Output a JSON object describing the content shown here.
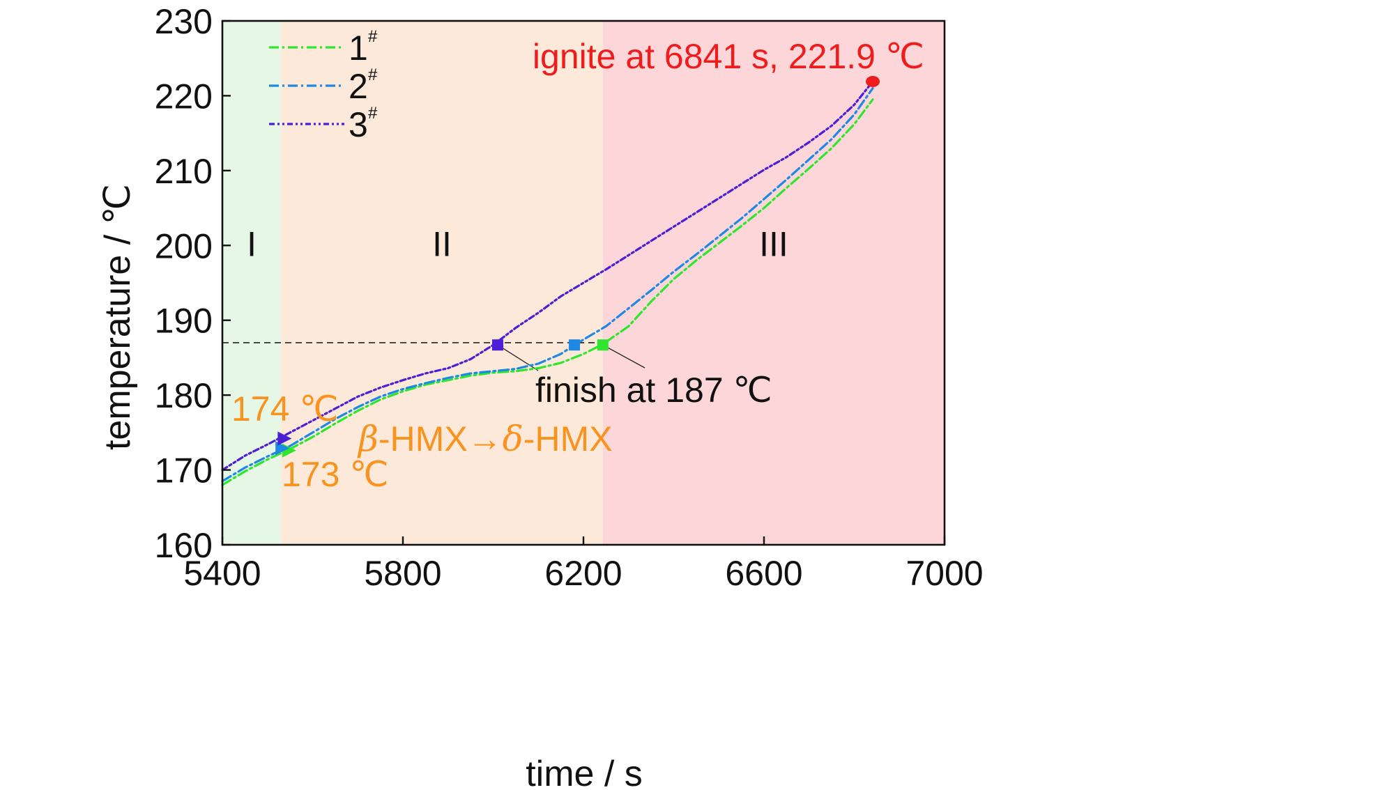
{
  "chart_data": {
    "type": "line",
    "xlabel": "time / s",
    "ylabel": "temperature / ℃",
    "xlim": [
      5400,
      7000
    ],
    "ylim": [
      160,
      230
    ],
    "xticks": [
      "5400",
      "5800",
      "6200",
      "6600",
      "7000"
    ],
    "yticks": [
      "160",
      "170",
      "180",
      "190",
      "200",
      "210",
      "220",
      "230"
    ],
    "grid": false,
    "legend_position": "top-left",
    "regions": [
      {
        "label": "I",
        "x_from": 5400,
        "x_to": 5530,
        "color": "#e6f7e6"
      },
      {
        "label": "II",
        "x_from": 5530,
        "x_to": 6243,
        "color": "#fde9d9"
      },
      {
        "label": "III",
        "x_from": 6243,
        "x_to": 7000,
        "color": "#fcd6d8"
      }
    ],
    "series": [
      {
        "name": "1",
        "superscript": "#",
        "color": "#2ee62e",
        "dash": "14 5 3 5",
        "points": [
          [
            5400,
            168.0
          ],
          [
            5450,
            169.8
          ],
          [
            5500,
            171.4
          ],
          [
            5550,
            172.8
          ],
          [
            5600,
            174.4
          ],
          [
            5650,
            176.2
          ],
          [
            5700,
            177.9
          ],
          [
            5750,
            179.4
          ],
          [
            5800,
            180.5
          ],
          [
            5850,
            181.4
          ],
          [
            5900,
            182.0
          ],
          [
            5950,
            182.6
          ],
          [
            6000,
            183.0
          ],
          [
            6050,
            183.2
          ],
          [
            6100,
            183.6
          ],
          [
            6150,
            184.3
          ],
          [
            6200,
            185.5
          ],
          [
            6243,
            186.8
          ],
          [
            6300,
            189.2
          ],
          [
            6350,
            192.5
          ],
          [
            6400,
            195.5
          ],
          [
            6450,
            198.0
          ],
          [
            6500,
            200.3
          ],
          [
            6550,
            202.6
          ],
          [
            6600,
            205.0
          ],
          [
            6650,
            207.7
          ],
          [
            6700,
            210.3
          ],
          [
            6750,
            213.0
          ],
          [
            6800,
            216.2
          ],
          [
            6841,
            219.5
          ]
        ]
      },
      {
        "name": "2",
        "superscript": "#",
        "color": "#1e88e5",
        "dash": "14 5 3 5",
        "points": [
          [
            5400,
            168.5
          ],
          [
            5450,
            170.3
          ],
          [
            5500,
            171.8
          ],
          [
            5550,
            173.2
          ],
          [
            5600,
            175.0
          ],
          [
            5650,
            176.8
          ],
          [
            5700,
            178.4
          ],
          [
            5750,
            179.8
          ],
          [
            5800,
            180.8
          ],
          [
            5850,
            181.6
          ],
          [
            5900,
            182.3
          ],
          [
            5950,
            182.9
          ],
          [
            6000,
            183.2
          ],
          [
            6050,
            183.5
          ],
          [
            6100,
            184.2
          ],
          [
            6150,
            185.5
          ],
          [
            6180,
            186.7
          ],
          [
            6250,
            189.2
          ],
          [
            6300,
            191.6
          ],
          [
            6350,
            194.0
          ],
          [
            6400,
            196.5
          ],
          [
            6450,
            198.8
          ],
          [
            6500,
            201.2
          ],
          [
            6550,
            203.6
          ],
          [
            6600,
            206.2
          ],
          [
            6650,
            208.8
          ],
          [
            6700,
            211.5
          ],
          [
            6750,
            214.2
          ],
          [
            6800,
            217.5
          ],
          [
            6841,
            221.0
          ]
        ]
      },
      {
        "name": "3",
        "superscript": "#",
        "color": "#4a1fd6",
        "dash": "8 4 3 4 3 4",
        "points": [
          [
            5400,
            170.0
          ],
          [
            5450,
            171.9
          ],
          [
            5500,
            173.4
          ],
          [
            5550,
            175.0
          ],
          [
            5600,
            176.6
          ],
          [
            5650,
            178.2
          ],
          [
            5700,
            179.8
          ],
          [
            5750,
            181.0
          ],
          [
            5800,
            182.0
          ],
          [
            5850,
            182.9
          ],
          [
            5900,
            183.6
          ],
          [
            5950,
            184.8
          ],
          [
            6000,
            186.7
          ],
          [
            6050,
            189.0
          ],
          [
            6100,
            191.0
          ],
          [
            6150,
            193.2
          ],
          [
            6200,
            195.0
          ],
          [
            6250,
            196.8
          ],
          [
            6300,
            198.7
          ],
          [
            6350,
            200.6
          ],
          [
            6400,
            202.5
          ],
          [
            6450,
            204.4
          ],
          [
            6500,
            206.3
          ],
          [
            6550,
            208.2
          ],
          [
            6600,
            210.1
          ],
          [
            6650,
            211.8
          ],
          [
            6700,
            213.8
          ],
          [
            6750,
            216.0
          ],
          [
            6800,
            218.8
          ],
          [
            6841,
            221.9
          ]
        ]
      }
    ],
    "markers": [
      {
        "shape": "triangle-right",
        "x": 5545,
        "y": 172.6,
        "color": "#2ee62e"
      },
      {
        "shape": "triangle-right",
        "x": 5530,
        "y": 172.9,
        "color": "#1e88e5"
      },
      {
        "shape": "triangle-right",
        "x": 5535,
        "y": 174.2,
        "color": "#4a1fd6"
      },
      {
        "shape": "square",
        "x": 6010,
        "y": 186.7,
        "color": "#4a1fd6"
      },
      {
        "shape": "square",
        "x": 6180,
        "y": 186.7,
        "color": "#1e88e5"
      },
      {
        "shape": "square",
        "x": 6243,
        "y": 186.7,
        "color": "#2ee62e"
      },
      {
        "shape": "circle",
        "x": 6841,
        "y": 221.9,
        "color": "#ee1c1c"
      }
    ],
    "reference_line": {
      "y": 187,
      "x_from": 5400,
      "x_to": 6243
    },
    "annotations": [
      {
        "id": "ann_ignite",
        "text": "ignite at 6841 s, 221.9 ℃",
        "color": "#ee1c1c"
      },
      {
        "id": "ann_finish",
        "text": "finish at 187 ℃",
        "color": "#111111"
      },
      {
        "id": "ann_174",
        "text": "174 ℃",
        "color": "#f7931e"
      },
      {
        "id": "ann_173",
        "text": "173 ℃",
        "color": "#f7931e"
      },
      {
        "id": "ann_transition_a",
        "text": "β",
        "color": "#f7931e"
      },
      {
        "id": "ann_transition_b",
        "text": "-HMX→",
        "color": "#f7931e"
      },
      {
        "id": "ann_transition_c",
        "text": "δ",
        "color": "#f7931e"
      },
      {
        "id": "ann_transition_d",
        "text": "-HMX",
        "color": "#f7931e"
      }
    ]
  }
}
